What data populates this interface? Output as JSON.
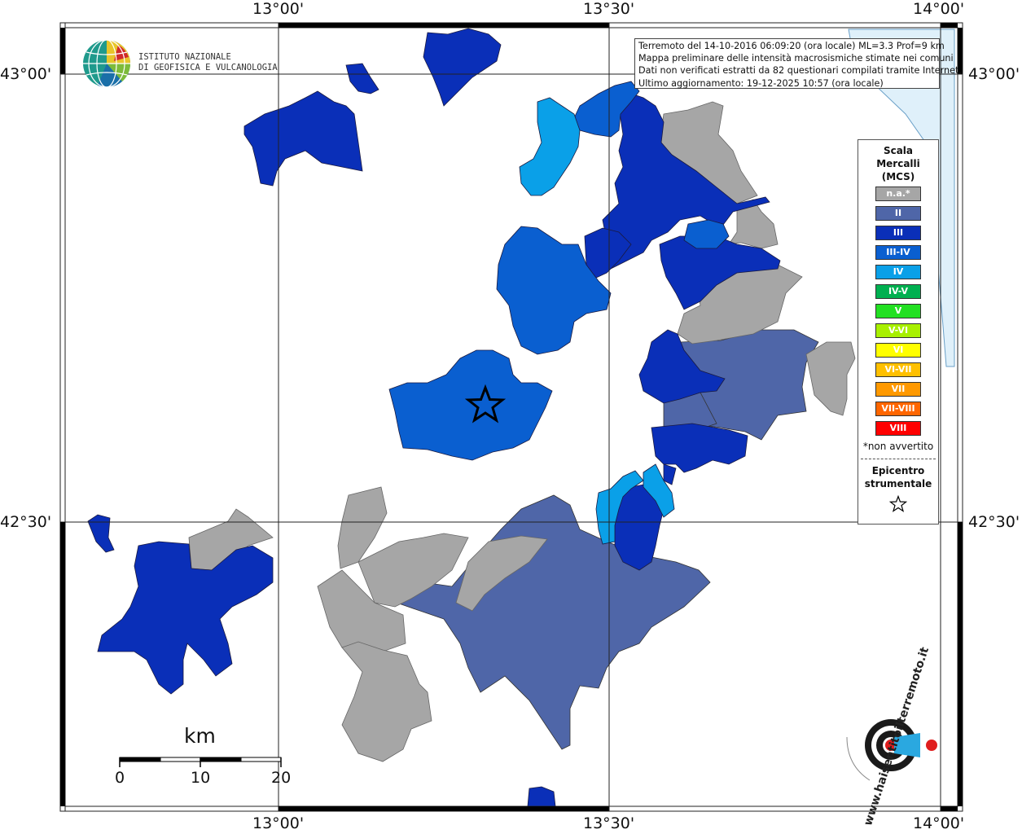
{
  "info": {
    "line1": "Terremoto del 14-10-2016 06:09:20 (ora locale) ML=3.3 Prof=9 km",
    "line2": "Mappa preliminare delle intensità macrosismiche stimate nei comuni",
    "line3": "Dati non verificati estratti da 82 questionari compilati tramite Internet.",
    "line4": "Ultimo aggiornamento: 19-12-2025 10:57 (ora locale)"
  },
  "logo": {
    "line1": "ISTITUTO NAZIONALE",
    "line2": "DI GEOFISICA E VULCANOLOGIA"
  },
  "axes": {
    "lon_ticks": [
      "13°00'",
      "13°30'",
      "14°00'"
    ],
    "lat_ticks": [
      "43°00'",
      "42°30'"
    ]
  },
  "legend": {
    "title_line1": "Scala",
    "title_line2": "Mercalli",
    "title_line3": "(MCS)",
    "items": [
      {
        "label": "n.a.*",
        "color": "#a6a6a6"
      },
      {
        "label": "II",
        "color": "#4f66a8"
      },
      {
        "label": "III",
        "color": "#0a2fb8"
      },
      {
        "label": "III-IV",
        "color": "#0a5fd0"
      },
      {
        "label": "IV",
        "color": "#0aa0e8"
      },
      {
        "label": "IV-V",
        "color": "#00b050"
      },
      {
        "label": "V",
        "color": "#22e022"
      },
      {
        "label": "V-VI",
        "color": "#a8f000"
      },
      {
        "label": "VI",
        "color": "#ffff00"
      },
      {
        "label": "VI-VII",
        "color": "#ffc000"
      },
      {
        "label": "VII",
        "color": "#ff9900"
      },
      {
        "label": "VII-VIII",
        "color": "#ff6600"
      },
      {
        "label": "VIII",
        "color": "#ff0000"
      }
    ],
    "note": "*non avvertito",
    "epicenter_line1": "Epicentro",
    "epicenter_line2": "strumentale"
  },
  "scale_bar": {
    "unit": "km",
    "labels": [
      "0",
      "10",
      "20"
    ]
  },
  "watermark": {
    "text": "www.haisentitoilterremoto.it"
  },
  "colors": {
    "na": "#a6a6a6",
    "II": "#4f66a8",
    "III": "#0a2fb8",
    "III-IV": "#0a5fd0",
    "IV": "#0aa0e8",
    "sea": "#dff0fa"
  }
}
